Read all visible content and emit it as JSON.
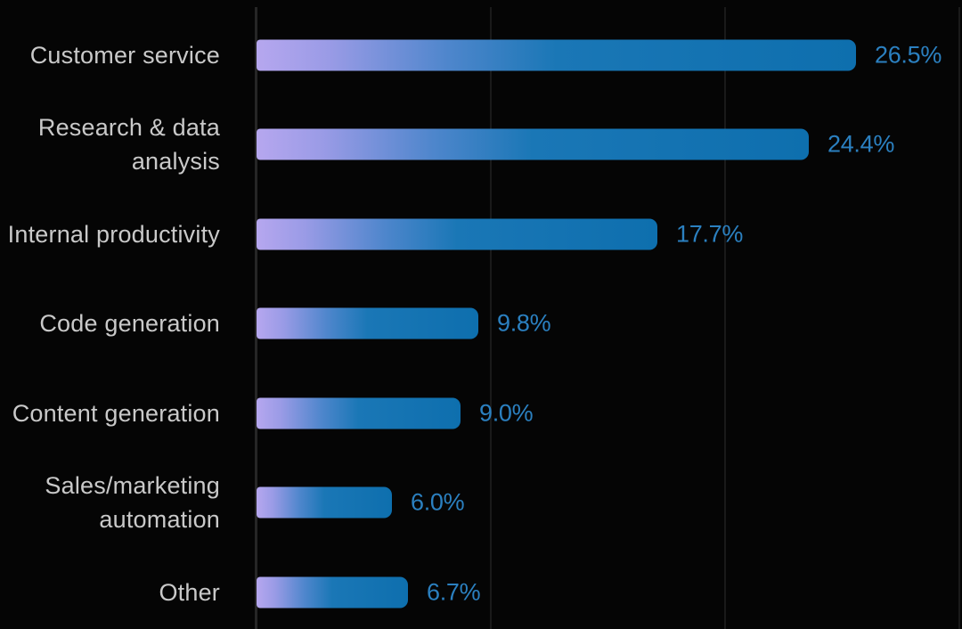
{
  "colors": {
    "background": "#050505",
    "bar_gradient_start": "#b6a7ef",
    "bar_gradient_end": "#0e6fae",
    "bar_solid_blue": "#1173b3",
    "value_text": "#2b80c0",
    "label_text": "#c9c9c9",
    "gridline": "#1a1a1a",
    "axis_line": "#262626"
  },
  "chart_data": {
    "type": "bar",
    "orientation": "horizontal",
    "title": "",
    "categories": [
      "Customer service",
      "Research & data analysis",
      "Internal productivity",
      "Code generation",
      "Content generation",
      "Sales/marketing automation",
      "Other"
    ],
    "category_display": [
      "Customer service",
      "Research & data\nanalysis",
      "Internal productivity",
      "Code generation",
      "Content generation",
      "Sales/marketing\nautomation",
      "Other"
    ],
    "values": [
      26.5,
      24.4,
      17.7,
      9.8,
      9.0,
      6.0,
      6.7
    ],
    "value_labels": [
      "26.5%",
      "24.4%",
      "17.7%",
      "9.8%",
      "9.0%",
      "6.0%",
      "6.7%"
    ],
    "xlim": [
      0,
      31
    ],
    "grid": "vertical",
    "tick_labels_visible": false,
    "legend": "none"
  }
}
